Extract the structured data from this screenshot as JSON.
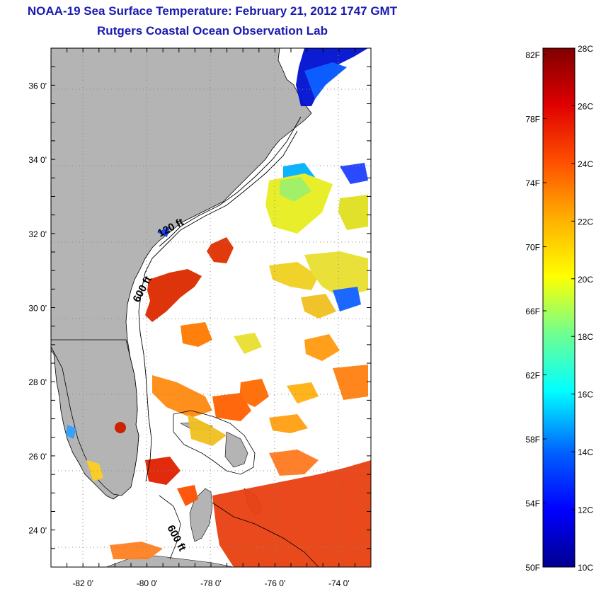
{
  "title": "NOAA-19 Sea Surface Temperature:  February 21, 2012 1747 GMT",
  "subtitle": "Rutgers Coastal Ocean Observation Lab",
  "map": {
    "lon_range": [
      -83,
      -73
    ],
    "lat_range": [
      23,
      37
    ],
    "lat_ticks": [
      {
        "value": 36,
        "label": "36 0'"
      },
      {
        "value": 34,
        "label": "34 0'"
      },
      {
        "value": 32,
        "label": "32 0'"
      },
      {
        "value": 30,
        "label": "30 0'"
      },
      {
        "value": 28,
        "label": "28 0'"
      },
      {
        "value": 26,
        "label": "26 0'"
      },
      {
        "value": 24,
        "label": "24 0'"
      }
    ],
    "lon_ticks": [
      {
        "value": -82,
        "label": "-82 0'"
      },
      {
        "value": -80,
        "label": "-80 0'"
      },
      {
        "value": -78,
        "label": "-78 0'"
      },
      {
        "value": -76,
        "label": "-76 0'"
      },
      {
        "value": -74,
        "label": "-74 0'"
      }
    ],
    "contour_labels": [
      "120 ft",
      "600 ft",
      "600 ft"
    ],
    "land_color": "#b4b4b4"
  },
  "colorbar": {
    "min_c": 10,
    "max_c": 28,
    "fahrenheit_labels": [
      "82F",
      "78F",
      "74F",
      "70F",
      "66F",
      "62F",
      "58F",
      "54F",
      "50F"
    ],
    "celsius_labels": [
      "28C",
      "26C",
      "24C",
      "22C",
      "20C",
      "18C",
      "16C",
      "14C",
      "12C",
      "10C"
    ]
  }
}
